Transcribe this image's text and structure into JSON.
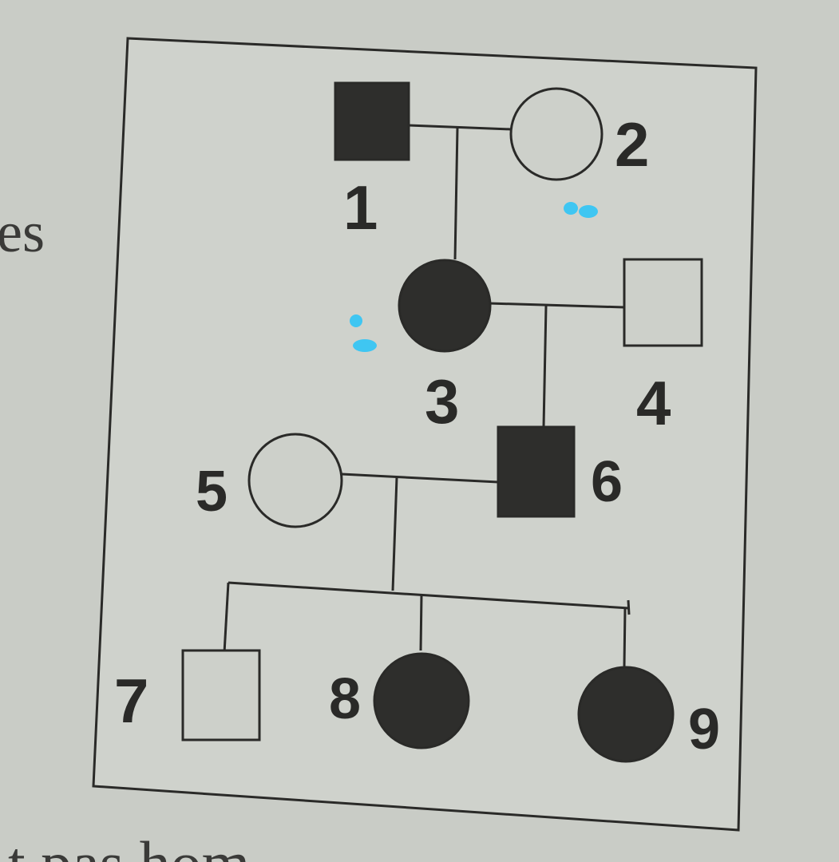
{
  "page_fragments": {
    "left_margin_text": "es",
    "bottom_text": "t pas hom"
  },
  "pedigree": {
    "individuals": [
      {
        "id": "1",
        "label": "1",
        "sex": "male",
        "affected": true
      },
      {
        "id": "2",
        "label": "2",
        "sex": "female",
        "affected": false
      },
      {
        "id": "3",
        "label": "3",
        "sex": "female",
        "affected": true
      },
      {
        "id": "4",
        "label": "4",
        "sex": "male",
        "affected": false
      },
      {
        "id": "5",
        "label": "5",
        "sex": "female",
        "affected": false
      },
      {
        "id": "6",
        "label": "6",
        "sex": "male",
        "affected": true
      },
      {
        "id": "7",
        "label": "7",
        "sex": "male",
        "affected": false
      },
      {
        "id": "8",
        "label": "8",
        "sex": "female",
        "affected": true
      },
      {
        "id": "9",
        "label": "9",
        "sex": "female",
        "affected": true
      }
    ],
    "unions": [
      {
        "partners": [
          "1",
          "2"
        ],
        "children": [
          "3"
        ]
      },
      {
        "partners": [
          "3",
          "4"
        ],
        "children": [
          "6"
        ]
      },
      {
        "partners": [
          "5",
          "6"
        ],
        "children": [
          "7",
          "8",
          "9"
        ]
      }
    ]
  },
  "colors": {
    "paper": "#c9ccc6",
    "ink": "#2a2a28",
    "affected_fill": "#2e2e2c",
    "unaffected_fill": "#cdd0ca",
    "marker": "#3fc6f2"
  }
}
